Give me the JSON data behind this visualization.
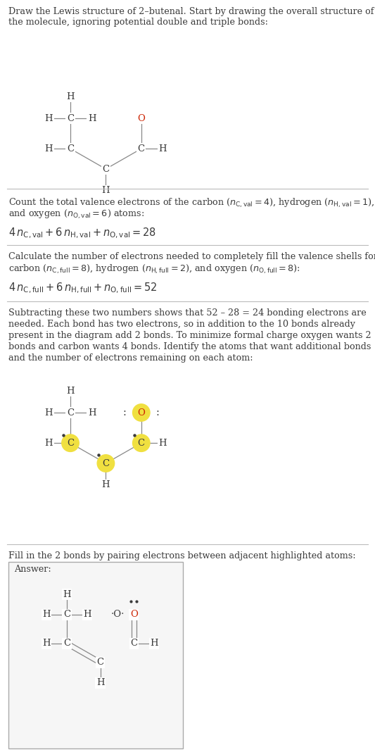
{
  "bg_color": "#ffffff",
  "text_color": "#3a3a3a",
  "red_color": "#cc2200",
  "highlight_color": "#f0e040",
  "divider_color": "#bbbbbb",
  "gray_bond": "#888888",
  "font_body": 9.2,
  "font_math": 10.5,
  "sections": {
    "s1_text": "Draw the Lewis structure of 2–butenal. Start by drawing the overall structure of\nthe molecule, ignoring potential double and triple bonds:",
    "s2_line1": "Count the total valence electrons of the carbon ($n_{\\mathrm{C,val}}=4$), hydrogen ($n_{\\mathrm{H,val}}=1$),",
    "s2_line2": "and oxygen ($n_{\\mathrm{O,val}}=6$) atoms:",
    "s2_line3": "$4\\,n_{\\mathrm{C,val}}+6\\,n_{\\mathrm{H,val}}+n_{\\mathrm{O,val}}=28$",
    "s3_line1": "Calculate the number of electrons needed to completely fill the valence shells for",
    "s3_line2": "carbon ($n_{\\mathrm{C,full}}=8$), hydrogen ($n_{\\mathrm{H,full}}=2$), and oxygen ($n_{\\mathrm{O,full}}=8$):",
    "s3_line3": "$4\\,n_{\\mathrm{C,full}}+6\\,n_{\\mathrm{H,full}}+n_{\\mathrm{O,full}}=52$",
    "s4_line1": "Subtracting these two numbers shows that 52 – 28 = 24 bonding electrons are",
    "s4_line2": "needed. Each bond has two electrons, so in addition to the 10 bonds already",
    "s4_line3": "present in the diagram add 2 bonds. To minimize formal charge oxygen wants 2",
    "s4_line4": "bonds and carbon wants 4 bonds. Identify the atoms that want additional bonds",
    "s4_line5": "and the number of electrons remaining on each atom:",
    "s5_line1": "Fill in the 2 bonds by pairing electrons between adjacent highlighted atoms:",
    "answer_label": "Answer:"
  }
}
